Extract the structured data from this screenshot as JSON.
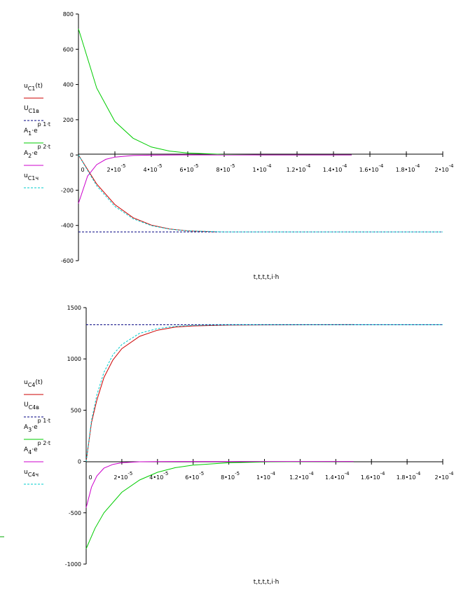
{
  "chart_data": [
    {
      "type": "line",
      "xlim": [
        0,
        0.0002
      ],
      "ylim": [
        -600,
        800
      ],
      "x_ticks": [
        {
          "m": "0",
          "e": ""
        },
        {
          "m": "2•10",
          "e": "-5"
        },
        {
          "m": "4•10",
          "e": "-5"
        },
        {
          "m": "6•10",
          "e": "-5"
        },
        {
          "m": "8•10",
          "e": "-5"
        },
        {
          "m": "1•10",
          "e": "-4"
        },
        {
          "m": "1.2•10",
          "e": "-4"
        },
        {
          "m": "1.4•10",
          "e": "-4"
        },
        {
          "m": "1.6•10",
          "e": "-4"
        },
        {
          "m": "1.8•10",
          "e": "-4"
        },
        {
          "m": "2•10",
          "e": "-4"
        }
      ],
      "y_ticks": [
        "-600",
        "-400",
        "-200",
        "0",
        "200",
        "400",
        "600",
        "800"
      ],
      "xlabel": "t,t,t,t,i·h",
      "legend": [
        {
          "a": "u",
          "b": "C1",
          "c": "(t)",
          "d": ""
        },
        {
          "a": "U",
          "b": "C1в",
          "c": "",
          "d": ""
        },
        {
          "a": "A",
          "b": "1",
          "c": "·e",
          "d": "p 1·t"
        },
        {
          "a": "A",
          "b": "2",
          "c": "·e",
          "d": "p 2·t"
        },
        {
          "a": "u",
          "b": "C1ч",
          "c": "",
          "d": ""
        }
      ],
      "series": [
        {
          "color": "#cc0000",
          "dash": "",
          "x": [
            0,
            1e-05,
            2e-05,
            3e-05,
            4e-05,
            5e-05,
            6e-05,
            7.6e-05
          ],
          "y": [
            0,
            -165,
            -282,
            -356,
            -398,
            -420,
            -431,
            -437
          ]
        },
        {
          "color": "#000080",
          "dash": "3,2",
          "x": [
            0,
            0.0002
          ],
          "y": [
            -437,
            -437
          ]
        },
        {
          "color": "#00cc00",
          "dash": "",
          "x": [
            0,
            1e-05,
            2e-05,
            3e-05,
            4e-05,
            5e-05,
            6e-05,
            8e-05,
            0.0001,
            0.00015
          ],
          "y": [
            716,
            380,
            190,
            95,
            45,
            22,
            11,
            3,
            0,
            0
          ]
        },
        {
          "color": "#cc00cc",
          "dash": "",
          "x": [
            0,
            5e-06,
            1e-05,
            1.5e-05,
            2e-05,
            3e-05,
            4e-05,
            6e-05,
            0.0001,
            0.00015
          ],
          "y": [
            -275,
            -120,
            -55,
            -25,
            -12,
            -3,
            -1,
            0,
            0,
            0
          ]
        },
        {
          "color": "#00cccc",
          "dash": "3,2",
          "x": [
            0,
            1e-05,
            2e-05,
            3e-05,
            4e-05,
            5e-05,
            6e-05,
            8e-05,
            0.0001,
            0.0002
          ],
          "y": [
            0,
            -175,
            -292,
            -362,
            -401,
            -421,
            -431,
            -437,
            -437,
            -437
          ]
        }
      ]
    },
    {
      "type": "line",
      "xlim": [
        0,
        0.0002
      ],
      "ylim": [
        -1000,
        1500
      ],
      "x_ticks": [
        {
          "m": "0",
          "e": ""
        },
        {
          "m": "2•10",
          "e": "-5"
        },
        {
          "m": "4•10",
          "e": "-5"
        },
        {
          "m": "6•10",
          "e": "-5"
        },
        {
          "m": "8•10",
          "e": "-5"
        },
        {
          "m": "1•10",
          "e": "-4"
        },
        {
          "m": "1.2•10",
          "e": "-4"
        },
        {
          "m": "1.4•10",
          "e": "-4"
        },
        {
          "m": "1.6•10",
          "e": "-4"
        },
        {
          "m": "1.8•10",
          "e": "-4"
        },
        {
          "m": "2•10",
          "e": "-4"
        }
      ],
      "y_ticks": [
        "-1000",
        "-500",
        "0",
        "500",
        "1000",
        "1500"
      ],
      "xlabel": "t,t,t,t,i·h",
      "legend": [
        {
          "a": "u",
          "b": "C4",
          "c": "(t)",
          "d": ""
        },
        {
          "a": "U",
          "b": "C4в",
          "c": "",
          "d": ""
        },
        {
          "a": "A",
          "b": "3",
          "c": "·e",
          "d": "p 1·t"
        },
        {
          "a": "A",
          "b": "4",
          "c": "·e",
          "d": "p 2·t"
        },
        {
          "a": "u",
          "b": "C4ч",
          "c": "",
          "d": ""
        }
      ],
      "series": [
        {
          "color": "#cc0000",
          "dash": "",
          "x": [
            0,
            3e-06,
            6e-06,
            1e-05,
            1.5e-05,
            2e-05,
            3e-05,
            4e-05,
            5e-05,
            6e-05,
            8e-05,
            0.0001,
            0.00015
          ],
          "y": [
            0,
            380,
            600,
            820,
            990,
            1100,
            1220,
            1280,
            1310,
            1322,
            1330,
            1332,
            1333
          ]
        },
        {
          "color": "#000080",
          "dash": "3,2",
          "x": [
            0,
            0.0002
          ],
          "y": [
            1333,
            1333
          ]
        },
        {
          "color": "#00cc00",
          "dash": "",
          "x": [
            0,
            5e-06,
            1e-05,
            2e-05,
            3e-05,
            4e-05,
            5e-05,
            6e-05,
            8e-05,
            0.0001,
            0.00015
          ],
          "y": [
            -850,
            -650,
            -500,
            -300,
            -180,
            -105,
            -60,
            -35,
            -12,
            -4,
            0
          ]
        },
        {
          "color": "#cc00cc",
          "dash": "",
          "x": [
            0,
            3e-06,
            6e-06,
            1e-05,
            1.5e-05,
            2e-05,
            3e-05,
            4e-05,
            6e-05,
            0.0001,
            0.00015
          ],
          "y": [
            -450,
            -250,
            -140,
            -65,
            -28,
            -12,
            -3,
            -1,
            0,
            0,
            0
          ]
        },
        {
          "color": "#00cccc",
          "dash": "3,2",
          "x": [
            0,
            3e-06,
            6e-06,
            1e-05,
            1.5e-05,
            2e-05,
            3e-05,
            4e-05,
            5e-05,
            6e-05,
            8e-05,
            0.0001,
            0.0002
          ],
          "y": [
            0,
            400,
            650,
            870,
            1040,
            1140,
            1250,
            1295,
            1318,
            1327,
            1332,
            1333,
            1333
          ]
        }
      ]
    }
  ]
}
